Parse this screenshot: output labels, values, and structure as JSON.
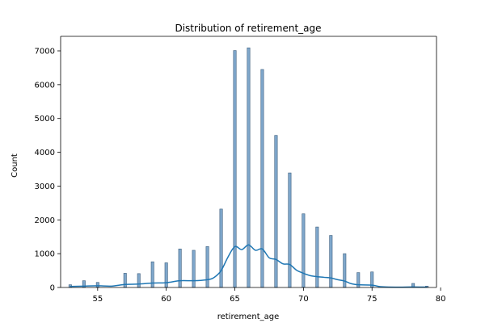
{
  "chart_data": {
    "type": "bar",
    "title": "Distribution of retirement_age",
    "xlabel": "retirement_age",
    "ylabel": "Count",
    "xlim": [
      52.3,
      79.7
    ],
    "ylim": [
      0,
      7430
    ],
    "x_ticks": [
      55,
      60,
      65,
      70,
      75,
      80
    ],
    "y_ticks": [
      0,
      1000,
      2000,
      3000,
      4000,
      5000,
      6000,
      7000
    ],
    "grid": false,
    "legend": "none",
    "bar_color": "#7fa7cb",
    "bar_edge_color": "#3d5f7f",
    "kde_color": "#1f77b4",
    "bars": [
      {
        "x": 53,
        "count": 80
      },
      {
        "x": 54,
        "count": 200
      },
      {
        "x": 55,
        "count": 150
      },
      {
        "x": 57,
        "count": 420
      },
      {
        "x": 58,
        "count": 410
      },
      {
        "x": 59,
        "count": 760
      },
      {
        "x": 60,
        "count": 730
      },
      {
        "x": 61,
        "count": 1140
      },
      {
        "x": 62,
        "count": 1100
      },
      {
        "x": 63,
        "count": 1210
      },
      {
        "x": 64,
        "count": 2320
      },
      {
        "x": 65,
        "count": 7010
      },
      {
        "x": 66,
        "count": 7090
      },
      {
        "x": 67,
        "count": 6450
      },
      {
        "x": 68,
        "count": 4500
      },
      {
        "x": 69,
        "count": 3390
      },
      {
        "x": 70,
        "count": 2180
      },
      {
        "x": 71,
        "count": 1790
      },
      {
        "x": 72,
        "count": 1540
      },
      {
        "x": 73,
        "count": 1000
      },
      {
        "x": 74,
        "count": 440
      },
      {
        "x": 75,
        "count": 460
      },
      {
        "x": 78,
        "count": 120
      },
      {
        "x": 79,
        "count": 40
      }
    ],
    "kde": [
      [
        53,
        30
      ],
      [
        54,
        40
      ],
      [
        55,
        50
      ],
      [
        56,
        40
      ],
      [
        57,
        90
      ],
      [
        58,
        100
      ],
      [
        59,
        130
      ],
      [
        60,
        140
      ],
      [
        61,
        200
      ],
      [
        62,
        200
      ],
      [
        63,
        230
      ],
      [
        63.5,
        300
      ],
      [
        64,
        500
      ],
      [
        64.5,
        900
      ],
      [
        65,
        1210
      ],
      [
        65.5,
        1120
      ],
      [
        66,
        1260
      ],
      [
        66.5,
        1100
      ],
      [
        67,
        1140
      ],
      [
        67.5,
        880
      ],
      [
        68,
        830
      ],
      [
        68.5,
        700
      ],
      [
        69,
        680
      ],
      [
        69.5,
        510
      ],
      [
        70,
        420
      ],
      [
        70.5,
        350
      ],
      [
        71,
        320
      ],
      [
        71.5,
        300
      ],
      [
        72,
        280
      ],
      [
        72.5,
        230
      ],
      [
        73,
        190
      ],
      [
        73.5,
        110
      ],
      [
        74,
        80
      ],
      [
        75,
        70
      ],
      [
        75.5,
        30
      ],
      [
        76,
        15
      ],
      [
        77,
        10
      ],
      [
        78,
        15
      ],
      [
        79,
        10
      ]
    ]
  }
}
